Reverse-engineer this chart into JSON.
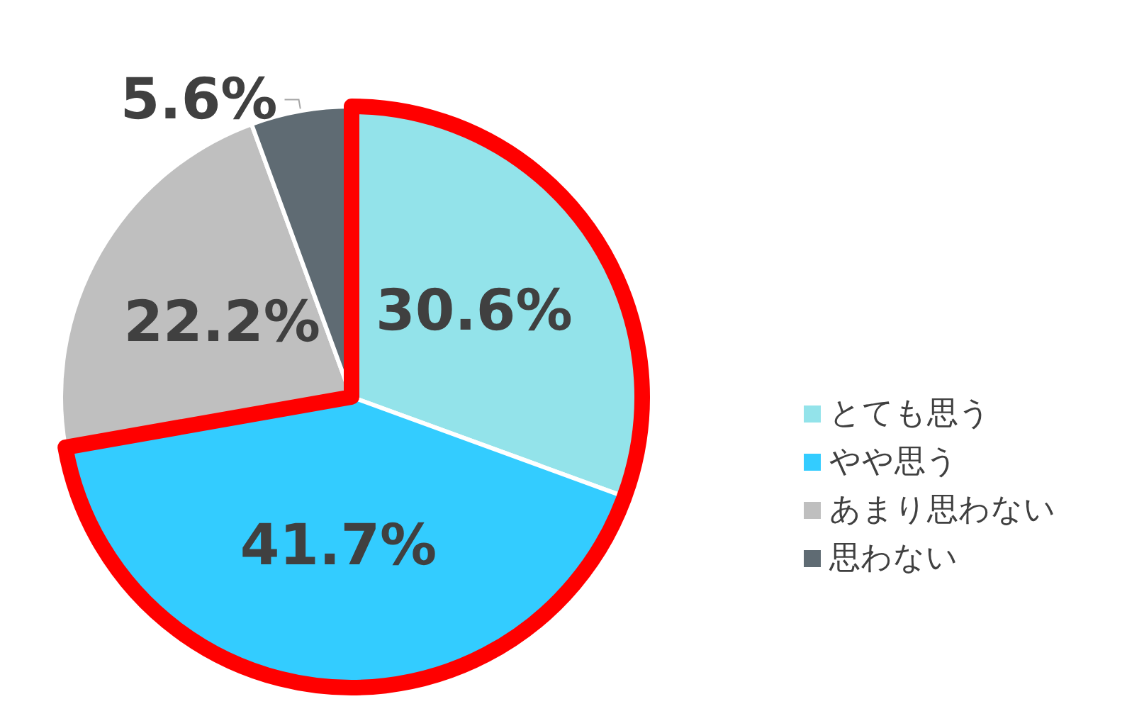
{
  "chart_data": {
    "type": "pie",
    "categories": [
      "とても思う",
      "やや思う",
      "あまり思わない",
      "思わない"
    ],
    "values": [
      30.6,
      41.7,
      22.2,
      5.6
    ],
    "colors": [
      "#93e3ea",
      "#33ccff",
      "#bfbfbf",
      "#5f6b73"
    ],
    "value_labels": [
      "30.6%",
      "41.7%",
      "22.2%",
      "5.6%"
    ],
    "legend": "right"
  }
}
